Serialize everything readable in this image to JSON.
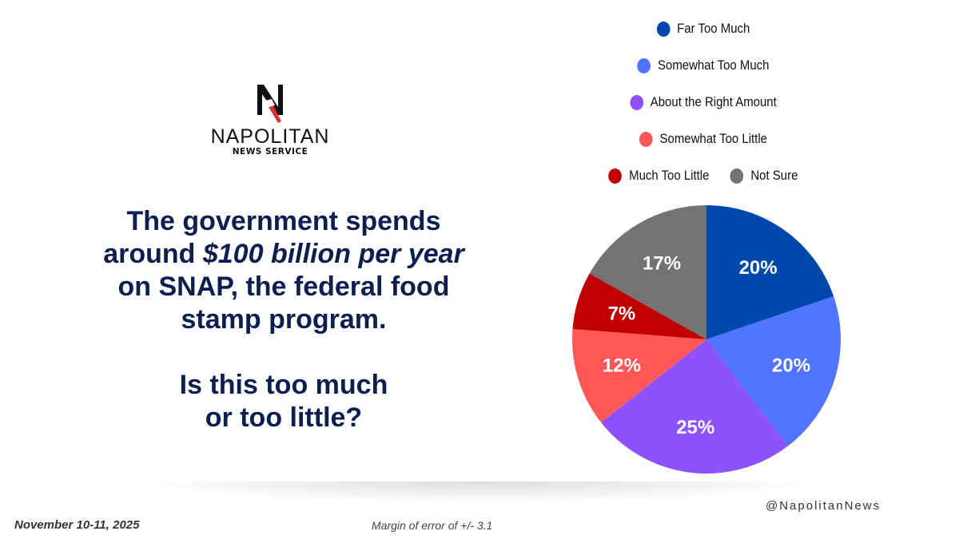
{
  "brand": {
    "name": "NAPOLITAN",
    "subtitle": "NEWS SERVICE",
    "logo_icon": "napolitan-n-logo-icon",
    "handle": "@NapolitanNews"
  },
  "question": {
    "line1": "The government spends",
    "line2_prefix": "around ",
    "line2_emphasis": "$100 billion per year",
    "line3": "on SNAP, the federal food",
    "line4": "stamp program.",
    "line5": "Is this too much",
    "line6": "or too little?"
  },
  "footer": {
    "date": "November 10-11, 2025",
    "margin_of_error": "Margin of error of +/- 3.1"
  },
  "chart_data": {
    "type": "pie",
    "title": "The government spends around $100 billion per year on SNAP, the federal food stamp program. Is this too much or too little?",
    "start_angle": "12 o'clock",
    "direction": "clockwise",
    "legend_position": "top",
    "slices": [
      {
        "label": "Far Too Much",
        "value": 20,
        "display": "20%",
        "color": "#0047ab"
      },
      {
        "label": "Somewhat Too Much",
        "value": 20,
        "display": "20%",
        "color": "#5173ff"
      },
      {
        "label": "About the Right Amount",
        "value": 25,
        "display": "25%",
        "color": "#8c52ff"
      },
      {
        "label": "Somewhat Too Little",
        "value": 12,
        "display": "12%",
        "color": "#ff5757"
      },
      {
        "label": "Much Too Little",
        "value": 7,
        "display": "7%",
        "color": "#c00000"
      },
      {
        "label": "Not Sure",
        "value": 17,
        "display": "17%",
        "color": "#737373"
      }
    ]
  }
}
